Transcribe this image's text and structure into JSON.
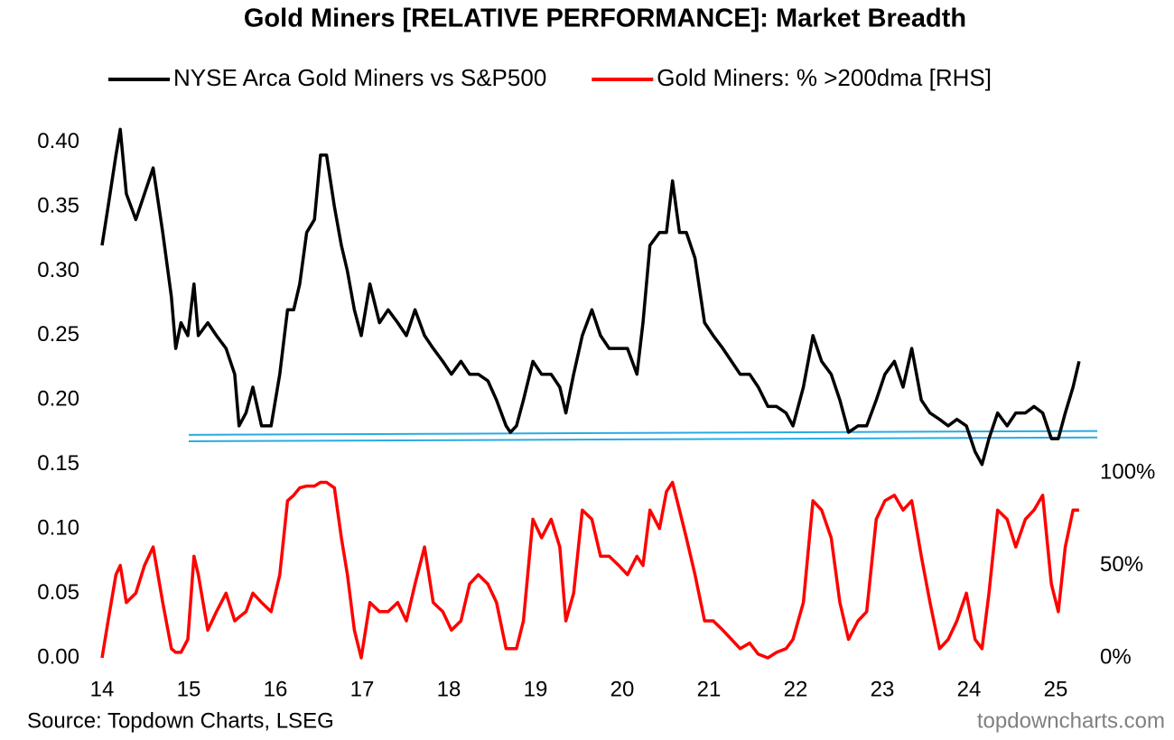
{
  "chart_data": {
    "type": "line",
    "title": "Gold Miners [RELATIVE PERFORMANCE]: Market Breadth",
    "source": "Source: Topdown Charts, LSEG",
    "watermark": "topdowncharts.com",
    "x": [
      14.0,
      14.07,
      14.16,
      14.21,
      14.28,
      14.39,
      14.49,
      14.59,
      14.7,
      14.8,
      14.85,
      14.91,
      14.99,
      15.06,
      15.11,
      15.22,
      15.32,
      15.43,
      15.53,
      15.58,
      15.66,
      15.74,
      15.84,
      15.95,
      16.05,
      16.14,
      16.21,
      16.28,
      16.36,
      16.45,
      16.52,
      16.59,
      16.68,
      16.76,
      16.83,
      16.91,
      16.99,
      17.09,
      17.2,
      17.3,
      17.41,
      17.51,
      17.61,
      17.72,
      17.82,
      17.93,
      18.03,
      18.14,
      18.24,
      18.34,
      18.45,
      18.55,
      18.66,
      18.71,
      18.78,
      18.86,
      18.97,
      19.07,
      19.18,
      19.28,
      19.35,
      19.44,
      19.54,
      19.65,
      19.75,
      19.85,
      19.96,
      20.06,
      20.17,
      20.24,
      20.32,
      20.43,
      20.51,
      20.58,
      20.66,
      20.74,
      20.84,
      20.95,
      21.05,
      21.16,
      21.26,
      21.36,
      21.47,
      21.57,
      21.68,
      21.78,
      21.89,
      21.97,
      22.09,
      22.2,
      22.3,
      22.41,
      22.51,
      22.61,
      22.72,
      22.82,
      22.93,
      23.03,
      23.14,
      23.24,
      23.34,
      23.45,
      23.55,
      23.66,
      23.76,
      23.86,
      23.97,
      24.07,
      24.15,
      24.23,
      24.33,
      24.44,
      24.54,
      24.65,
      24.75,
      24.85,
      24.95,
      25.03,
      25.11,
      25.2,
      25.27
    ],
    "series": [
      {
        "name": "NYSE Arca Gold Miners vs S&P500",
        "color": "#000000",
        "values": [
          0.32,
          0.35,
          0.39,
          0.41,
          0.36,
          0.34,
          0.36,
          0.38,
          0.33,
          0.28,
          0.24,
          0.26,
          0.25,
          0.29,
          0.25,
          0.26,
          0.25,
          0.24,
          0.22,
          0.18,
          0.19,
          0.21,
          0.18,
          0.18,
          0.22,
          0.27,
          0.27,
          0.29,
          0.33,
          0.34,
          0.39,
          0.39,
          0.35,
          0.32,
          0.3,
          0.27,
          0.25,
          0.29,
          0.26,
          0.27,
          0.26,
          0.25,
          0.27,
          0.25,
          0.24,
          0.23,
          0.22,
          0.23,
          0.22,
          0.22,
          0.215,
          0.2,
          0.18,
          0.175,
          0.18,
          0.2,
          0.23,
          0.22,
          0.22,
          0.21,
          0.19,
          0.22,
          0.25,
          0.27,
          0.25,
          0.24,
          0.24,
          0.24,
          0.22,
          0.26,
          0.32,
          0.33,
          0.33,
          0.37,
          0.33,
          0.33,
          0.31,
          0.26,
          0.25,
          0.24,
          0.23,
          0.22,
          0.22,
          0.21,
          0.195,
          0.195,
          0.19,
          0.18,
          0.21,
          0.25,
          0.23,
          0.22,
          0.2,
          0.175,
          0.18,
          0.18,
          0.2,
          0.22,
          0.23,
          0.21,
          0.24,
          0.2,
          0.19,
          0.185,
          0.18,
          0.185,
          0.18,
          0.16,
          0.15,
          0.17,
          0.19,
          0.18,
          0.19,
          0.19,
          0.195,
          0.19,
          0.17,
          0.17,
          0.19,
          0.21,
          0.23
        ]
      },
      {
        "name": "Gold Miners: % >200dma [RHS]",
        "color": "#ff0000",
        "axis": "y2",
        "values": [
          0,
          20,
          45,
          50,
          30,
          35,
          50,
          60,
          30,
          5,
          3,
          3,
          10,
          55,
          45,
          15,
          25,
          35,
          20,
          22,
          25,
          35,
          30,
          25,
          45,
          85,
          88,
          92,
          93,
          93,
          95,
          95,
          92,
          65,
          45,
          15,
          0,
          30,
          25,
          25,
          30,
          20,
          40,
          60,
          30,
          25,
          15,
          20,
          40,
          45,
          40,
          30,
          5,
          5,
          5,
          20,
          75,
          65,
          75,
          60,
          20,
          35,
          80,
          75,
          55,
          55,
          50,
          45,
          55,
          50,
          80,
          70,
          90,
          95,
          80,
          65,
          45,
          20,
          20,
          15,
          10,
          5,
          8,
          2,
          0,
          3,
          5,
          10,
          30,
          85,
          80,
          65,
          30,
          10,
          20,
          25,
          75,
          85,
          88,
          80,
          85,
          55,
          30,
          5,
          10,
          20,
          35,
          10,
          5,
          35,
          80,
          75,
          60,
          75,
          80,
          88,
          40,
          25,
          60,
          80,
          80
        ]
      }
    ],
    "reference_lines": [
      {
        "color": "#29abe2",
        "x": [
          15.0,
          25.48
        ],
        "y": [
          0.173,
          0.176
        ]
      },
      {
        "color": "#29abe2",
        "x": [
          15.0,
          25.48
        ],
        "y": [
          0.168,
          0.171
        ]
      }
    ],
    "xlim": [
      14,
      25.32
    ],
    "xticks": [
      14,
      15,
      16,
      17,
      18,
      19,
      20,
      21,
      22,
      23,
      24,
      25
    ],
    "ylim": [
      0,
      0.42
    ],
    "yticks": [
      {
        "value": 0,
        "label": "0.00"
      },
      {
        "value": 0.05,
        "label": "0.05"
      },
      {
        "value": 0.1,
        "label": "0.10"
      },
      0.15,
      {
        "value": 0.2,
        "label": "0.20"
      },
      0.25,
      {
        "value": 0.3,
        "label": "0.30"
      },
      0.35,
      {
        "value": 0.4,
        "label": "0.40"
      }
    ],
    "y2lim": [
      0,
      293
    ],
    "y2ticks": [
      {
        "value": 0,
        "label": "0%"
      },
      {
        "value": 50,
        "label": "50%"
      },
      {
        "value": 100,
        "label": "100%"
      }
    ],
    "y2_color": "#ff0000",
    "grid": false
  }
}
